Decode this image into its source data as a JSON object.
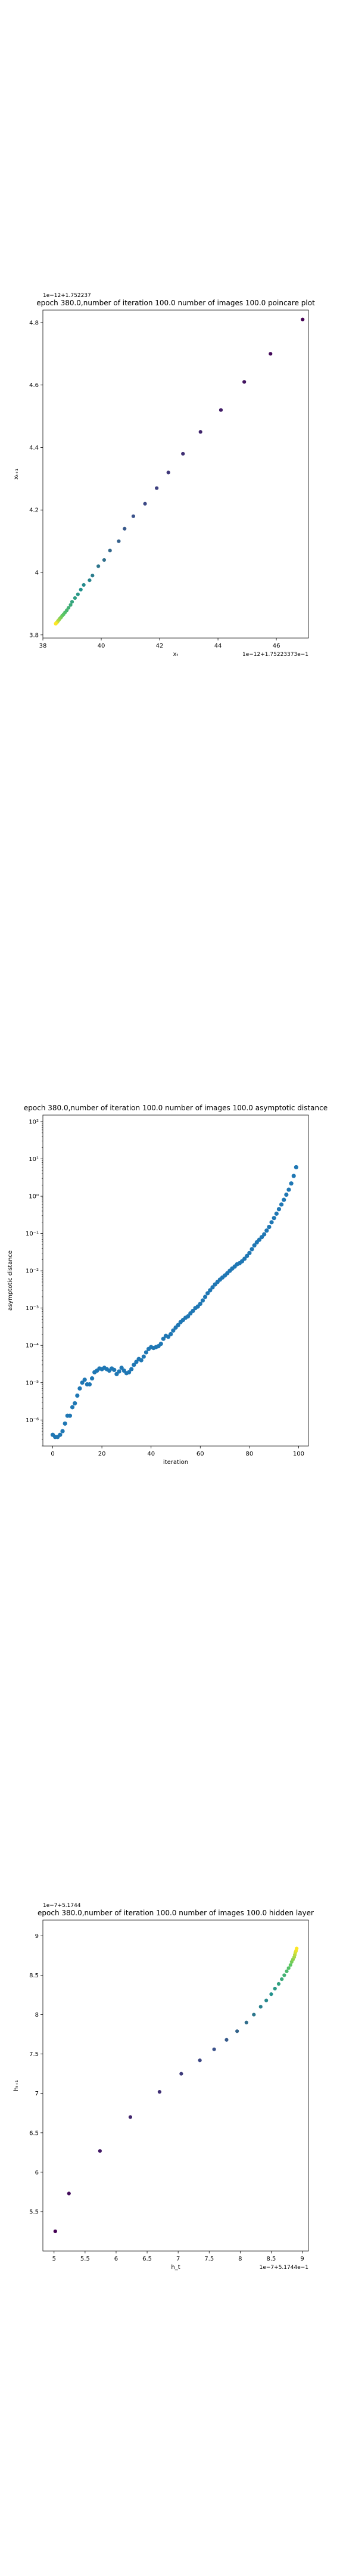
{
  "chart_data": [
    {
      "type": "scatter",
      "title": "epoch 380.0,number of iteration 100.0 number of images 100.0 poincare plot",
      "xlabel": "xₜ",
      "ylabel": "xₜ₊₁",
      "offset_text_y": "1e−12+1.752237",
      "offset_text_x": "1e−12+1.75223373e−1",
      "xlim": [
        38.0,
        47.1
      ],
      "ylim": [
        3.79,
        4.84
      ],
      "xticks": [
        38,
        40,
        42,
        44,
        46
      ],
      "yticks": [
        3.8,
        4.0,
        4.2,
        4.4,
        4.6,
        4.8
      ],
      "colormap": "viridis",
      "series": [
        {
          "x": [
            46.9,
            45.8,
            44.9,
            44.1,
            43.4,
            42.8,
            42.3,
            41.9,
            41.5,
            41.1,
            40.8,
            40.6,
            40.3,
            40.1,
            39.9,
            39.7,
            39.6,
            39.4,
            39.3,
            39.2,
            39.1,
            39.0,
            38.95,
            38.88,
            38.82,
            38.76,
            38.71,
            38.66,
            38.62,
            38.58,
            38.55,
            38.52,
            38.5,
            38.48,
            38.46,
            38.45,
            38.44
          ],
          "y": [
            4.81,
            4.7,
            4.61,
            4.52,
            4.45,
            4.38,
            4.32,
            4.27,
            4.22,
            4.18,
            4.14,
            4.1,
            4.07,
            4.04,
            4.02,
            3.99,
            3.975,
            3.96,
            3.945,
            3.93,
            3.918,
            3.906,
            3.896,
            3.887,
            3.879,
            3.872,
            3.866,
            3.861,
            3.856,
            3.852,
            3.848,
            3.845,
            3.842,
            3.84,
            3.838,
            3.837,
            3.836
          ]
        }
      ]
    },
    {
      "type": "scatter",
      "title": "epoch 380.0,number of iteration 100.0  number of images 100.0 asymptotic distance",
      "xlabel": "iteration",
      "ylabel": "asymptotic distance",
      "yscale": "log",
      "xlim": [
        -4,
        104
      ],
      "ylim": [
        2e-07,
        150
      ],
      "xticks": [
        0,
        20,
        40,
        60,
        80,
        100
      ],
      "yticks": [
        1e-06,
        1e-05,
        0.0001,
        0.001,
        0.01,
        0.1,
        1,
        10,
        100
      ],
      "ytick_labels": [
        "10⁻⁶",
        "10⁻⁵",
        "10⁻⁴",
        "10⁻³",
        "10⁻²",
        "10⁻¹",
        "10⁰",
        "10¹",
        "10²"
      ],
      "series": [
        {
          "x": [
            0,
            1,
            2,
            3,
            4,
            5,
            6,
            7,
            8,
            9,
            10,
            11,
            12,
            13,
            14,
            15,
            16,
            17,
            18,
            19,
            20,
            21,
            22,
            23,
            24,
            25,
            26,
            27,
            28,
            29,
            30,
            31,
            32,
            33,
            34,
            35,
            36,
            37,
            38,
            39,
            40,
            41,
            42,
            43,
            44,
            45,
            46,
            47,
            48,
            49,
            50,
            51,
            52,
            53,
            54,
            55,
            56,
            57,
            58,
            59,
            60,
            61,
            62,
            63,
            64,
            65,
            66,
            67,
            68,
            69,
            70,
            71,
            72,
            73,
            74,
            75,
            76,
            77,
            78,
            79,
            80,
            81,
            82,
            83,
            84,
            85,
            86,
            87,
            88,
            89,
            90,
            91,
            92,
            93,
            94,
            95,
            96,
            97,
            98,
            99
          ],
          "y": [
            4e-07,
            3.5e-07,
            3.5e-07,
            4e-07,
            5e-07,
            8e-07,
            1.3e-06,
            1.3e-06,
            2.2e-06,
            2.8e-06,
            4.5e-06,
            7e-06,
            1e-05,
            1.2e-05,
            9e-06,
            9e-06,
            1.3e-05,
            1.9e-05,
            2.1e-05,
            2.4e-05,
            2.3e-05,
            2.5e-05,
            2.3e-05,
            2.1e-05,
            2.4e-05,
            2.2e-05,
            1.7e-05,
            2e-05,
            2.5e-05,
            2.1e-05,
            1.8e-05,
            1.9e-05,
            2.3e-05,
            3e-05,
            3.6e-05,
            4.3e-05,
            4e-05,
            5e-05,
            6.5e-05,
            8e-05,
            9e-05,
            8.5e-05,
            9e-05,
            9.5e-05,
            0.00011,
            0.00015,
            0.00018,
            0.00017,
            0.0002,
            0.00025,
            0.0003,
            0.00035,
            0.00042,
            0.00048,
            0.00055,
            0.0006,
            0.00072,
            0.00084,
            0.001,
            0.0011,
            0.0013,
            0.0016,
            0.002,
            0.0025,
            0.003,
            0.0036,
            0.0043,
            0.005,
            0.0058,
            0.0066,
            0.0075,
            0.0086,
            0.01,
            0.0115,
            0.013,
            0.015,
            0.016,
            0.018,
            0.021,
            0.025,
            0.03,
            0.038,
            0.048,
            0.058,
            0.068,
            0.08,
            0.095,
            0.12,
            0.15,
            0.2,
            0.26,
            0.34,
            0.45,
            0.6,
            0.8,
            1.1,
            1.5,
            2.2,
            3.5,
            6.0
          ]
        }
      ]
    },
    {
      "type": "scatter",
      "title": "epoch 380.0,number of iteration 100.0  number of images 100.0 hidden layer",
      "xlabel": "h_t",
      "ylabel": "hₜ₊₁",
      "offset_text_y": "1e−7+5.1744",
      "offset_text_x": "1e−7+5.1744e−1",
      "xlim": [
        4.82,
        9.1
      ],
      "ylim": [
        5.0,
        9.2
      ],
      "xticks": [
        5.0,
        5.5,
        6.0,
        6.5,
        7.0,
        7.5,
        8.0,
        8.5,
        9.0
      ],
      "yticks": [
        5.5,
        6.0,
        6.5,
        7.0,
        7.5,
        8.0,
        8.5,
        9.0
      ],
      "colormap": "viridis",
      "series": [
        {
          "x": [
            5.02,
            5.24,
            5.74,
            6.23,
            6.7,
            7.05,
            7.35,
            7.58,
            7.78,
            7.95,
            8.1,
            8.22,
            8.33,
            8.42,
            8.5,
            8.56,
            8.62,
            8.67,
            8.71,
            8.75,
            8.78,
            8.81,
            8.83,
            8.85,
            8.87,
            8.88,
            8.89,
            8.9,
            8.91
          ],
          "y": [
            5.25,
            5.73,
            6.27,
            6.7,
            7.02,
            7.25,
            7.42,
            7.56,
            7.68,
            7.79,
            7.9,
            8.0,
            8.1,
            8.18,
            8.26,
            8.33,
            8.39,
            8.45,
            8.5,
            8.55,
            8.59,
            8.63,
            8.67,
            8.7,
            8.73,
            8.76,
            8.79,
            8.81,
            8.84
          ]
        }
      ]
    }
  ]
}
